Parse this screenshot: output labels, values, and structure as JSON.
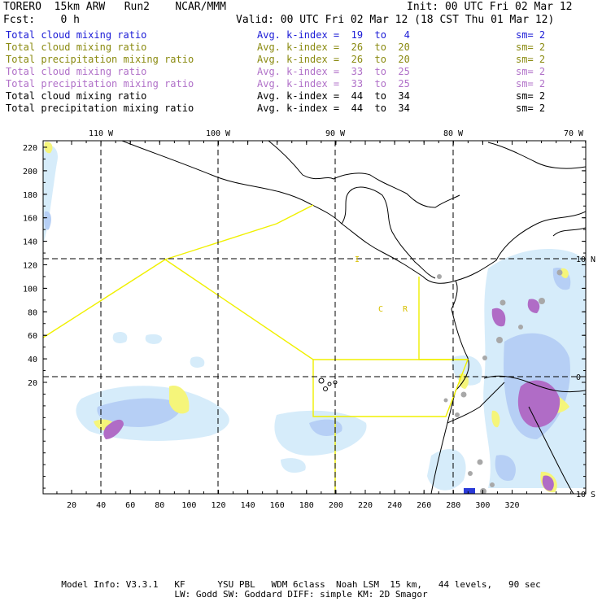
{
  "header": {
    "model": "TORERO  15km ARW   Run2    NCAR/MMM",
    "init": "Init: 00 UTC Fri 02 Mar 12",
    "fcst": "Fcst:    0 h",
    "valid": "Valid: 00 UTC Fri 02 Mar 12 (18 CST Thu 01 Mar 12)"
  },
  "legend": [
    {
      "field": "Total cloud mixing ratio",
      "kindex": "Avg. k-index =  19  to   4",
      "sm": "sm= 2",
      "color": "#1a1ad6",
      "cls": "c-blue"
    },
    {
      "field": "Total cloud mixing ratio",
      "kindex": "Avg. k-index =  26  to  20",
      "sm": "sm= 2",
      "color": "#8a8a10",
      "cls": "c-olive"
    },
    {
      "field": "Total precipitation mixing ratio",
      "kindex": "Avg. k-index =  26  to  20",
      "sm": "sm= 2",
      "color": "#8a8a10",
      "cls": "c-olive"
    },
    {
      "field": "Total cloud mixing ratio",
      "kindex": "Avg. k-index =  33  to  25",
      "sm": "sm= 2",
      "color": "#b070c8",
      "cls": "c-purple"
    },
    {
      "field": "Total precipitation mixing ratio",
      "kindex": "Avg. k-index =  33  to  25",
      "sm": "sm= 2",
      "color": "#b070c8",
      "cls": "c-purple"
    },
    {
      "field": "Total cloud mixing ratio",
      "kindex": "Avg. k-index =  44  to  34",
      "sm": "sm= 2",
      "color": "#000000",
      "cls": "c-black"
    },
    {
      "field": "Total precipitation mixing ratio",
      "kindex": "Avg. k-index =  44  to  34",
      "sm": "sm= 2",
      "color": "#000000",
      "cls": "c-black"
    }
  ],
  "map": {
    "top_lon_labels": [
      "110 W",
      "100 W",
      "90 W",
      "80 W",
      "70 W"
    ],
    "right_lat_labels": [
      "10 N",
      "0",
      "10 S"
    ],
    "y_ticks": [
      "220",
      "200",
      "180",
      "160",
      "140",
      "120",
      "100",
      "80",
      "60",
      "40",
      "20"
    ],
    "x_ticks": [
      "20",
      "40",
      "60",
      "80",
      "100",
      "120",
      "140",
      "160",
      "180",
      "200",
      "220",
      "240",
      "260",
      "280",
      "300",
      "320"
    ],
    "region_labels": [
      "I",
      "C",
      "R"
    ],
    "colors": {
      "light_cloud": "#d6ecfa",
      "mid_cloud": "#b6cff5",
      "blue_cloud": "#8fa8f0",
      "yellow": "#f5f57a",
      "purple": "#b06cc6",
      "gray": "#a8a8a8",
      "box": "#f0f000"
    }
  },
  "footer": {
    "line1": "Model Info: V3.3.1   KF      YSU PBL   WDM 6class  Noah LSM  15 km,   44 levels,   90 sec",
    "line2": "LW: Godd SW: Goddard DIFF: simple KM: 2D Smagor"
  }
}
